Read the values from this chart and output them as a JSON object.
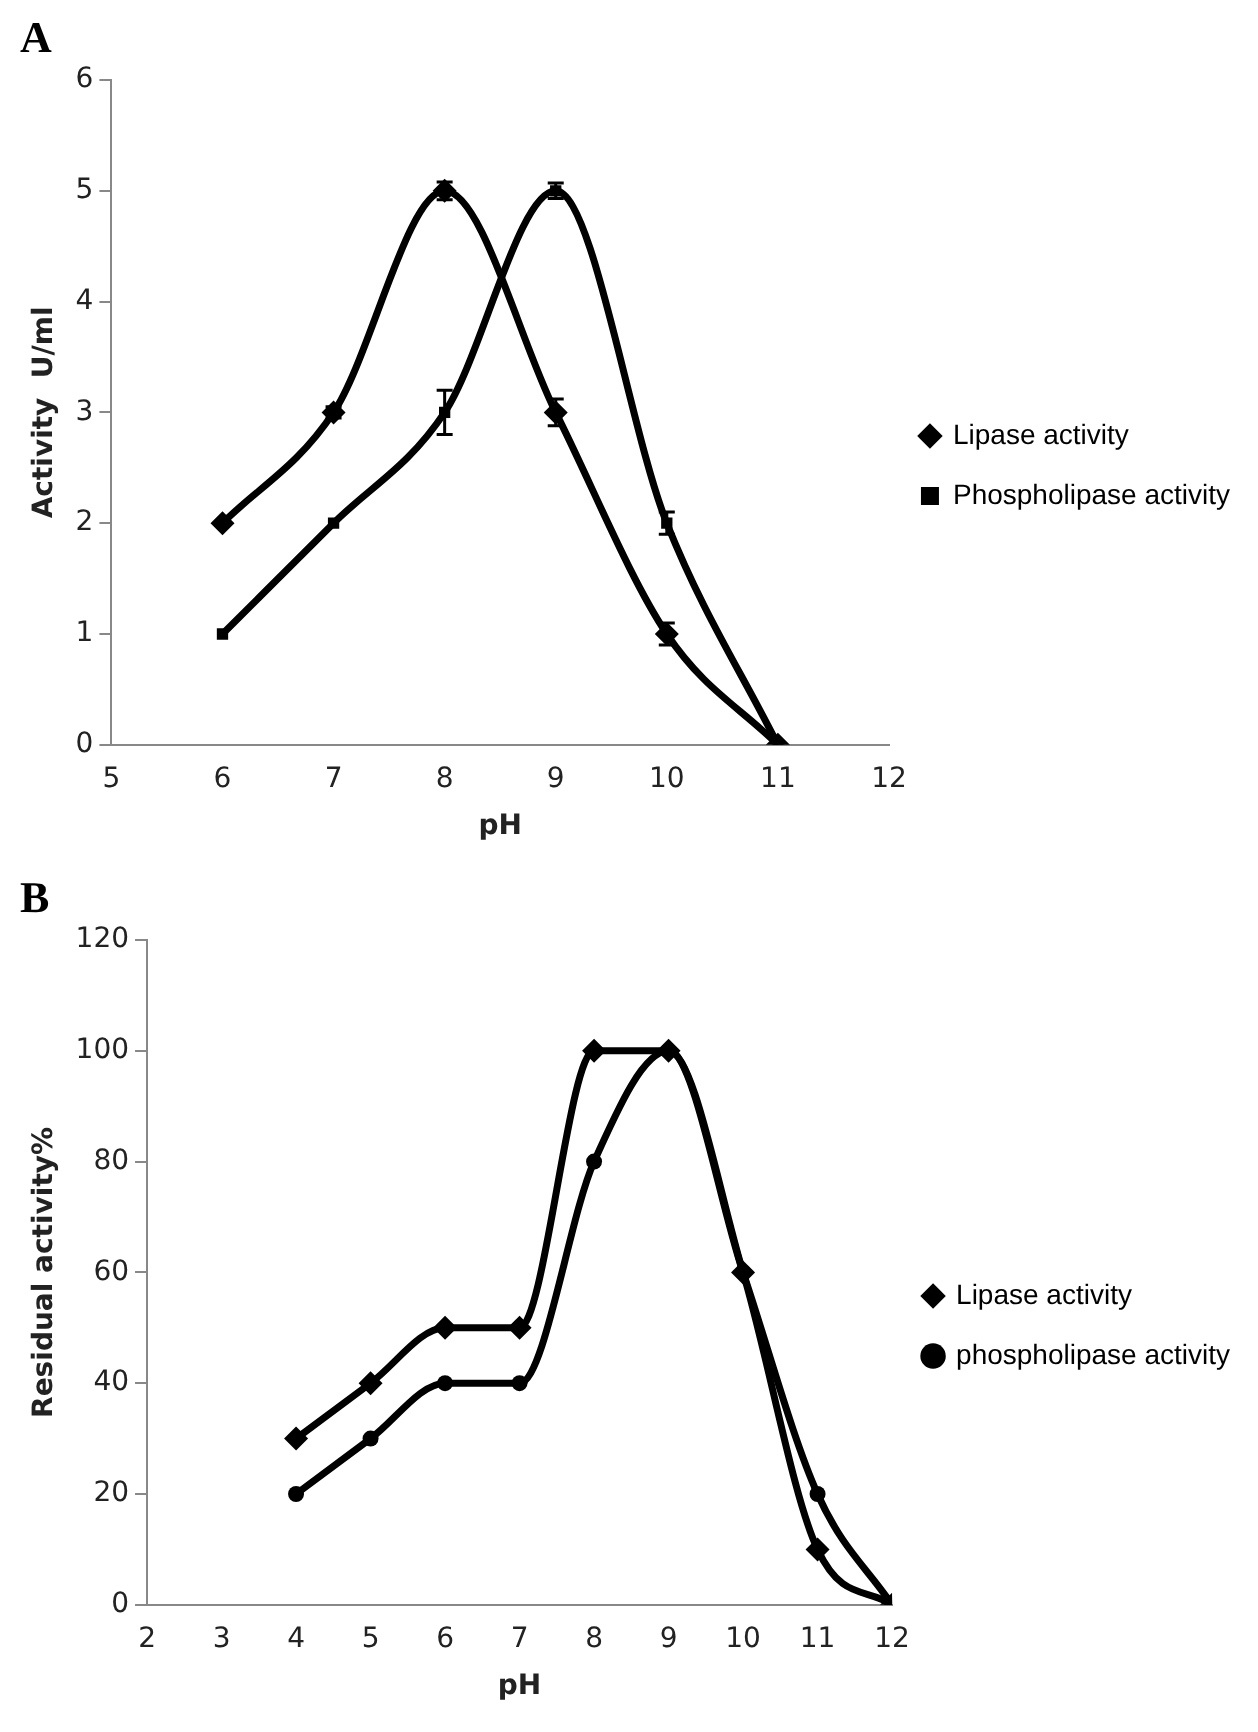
{
  "chart_data": [
    {
      "type": "line",
      "title": "A",
      "xlabel": "pH",
      "ylabel": "Activity  U/ml",
      "x": [
        6,
        7,
        8,
        9,
        10,
        11
      ],
      "xlim": [
        5,
        12
      ],
      "xticks": [
        5,
        6,
        7,
        8,
        9,
        10,
        11,
        12
      ],
      "ylim": [
        0,
        6
      ],
      "yticks": [
        0,
        1,
        2,
        3,
        4,
        5,
        6
      ],
      "grid": false,
      "legend": "right",
      "line_style": "solid",
      "series": [
        {
          "name": "Lipase activity",
          "color": "#000000",
          "marker": "diamond",
          "values": [
            2,
            3,
            5,
            3,
            1,
            0
          ],
          "errors": [
            null,
            0.05,
            0.08,
            0.12,
            0.1,
            null
          ]
        },
        {
          "name": "Phospholipase activity",
          "color": "#000000",
          "marker": "square",
          "values": [
            1,
            2,
            3,
            5,
            2,
            0
          ],
          "errors": [
            null,
            null,
            0.2,
            0.07,
            0.1,
            null
          ]
        }
      ]
    },
    {
      "type": "line",
      "title": "B",
      "xlabel": "pH",
      "ylabel": "Residual activity%",
      "x": [
        4,
        5,
        6,
        7,
        8,
        9,
        10,
        11,
        12
      ],
      "xlim": [
        2,
        12
      ],
      "xticks": [
        2,
        3,
        4,
        5,
        6,
        7,
        8,
        9,
        10,
        11,
        12
      ],
      "ylim": [
        0,
        120
      ],
      "yticks": [
        0,
        20,
        40,
        60,
        80,
        100,
        120
      ],
      "grid": false,
      "legend": "right",
      "line_style": "solid",
      "series": [
        {
          "name": "Lipase activity",
          "color": "#000000",
          "marker": "diamond",
          "values": [
            30,
            40,
            50,
            50,
            100,
            100,
            60,
            10,
            0
          ]
        },
        {
          "name": "phospholipase activity",
          "color": "#000000",
          "marker": "circle",
          "values": [
            20,
            30,
            40,
            40,
            80,
            100,
            60,
            20,
            0
          ]
        }
      ]
    }
  ]
}
